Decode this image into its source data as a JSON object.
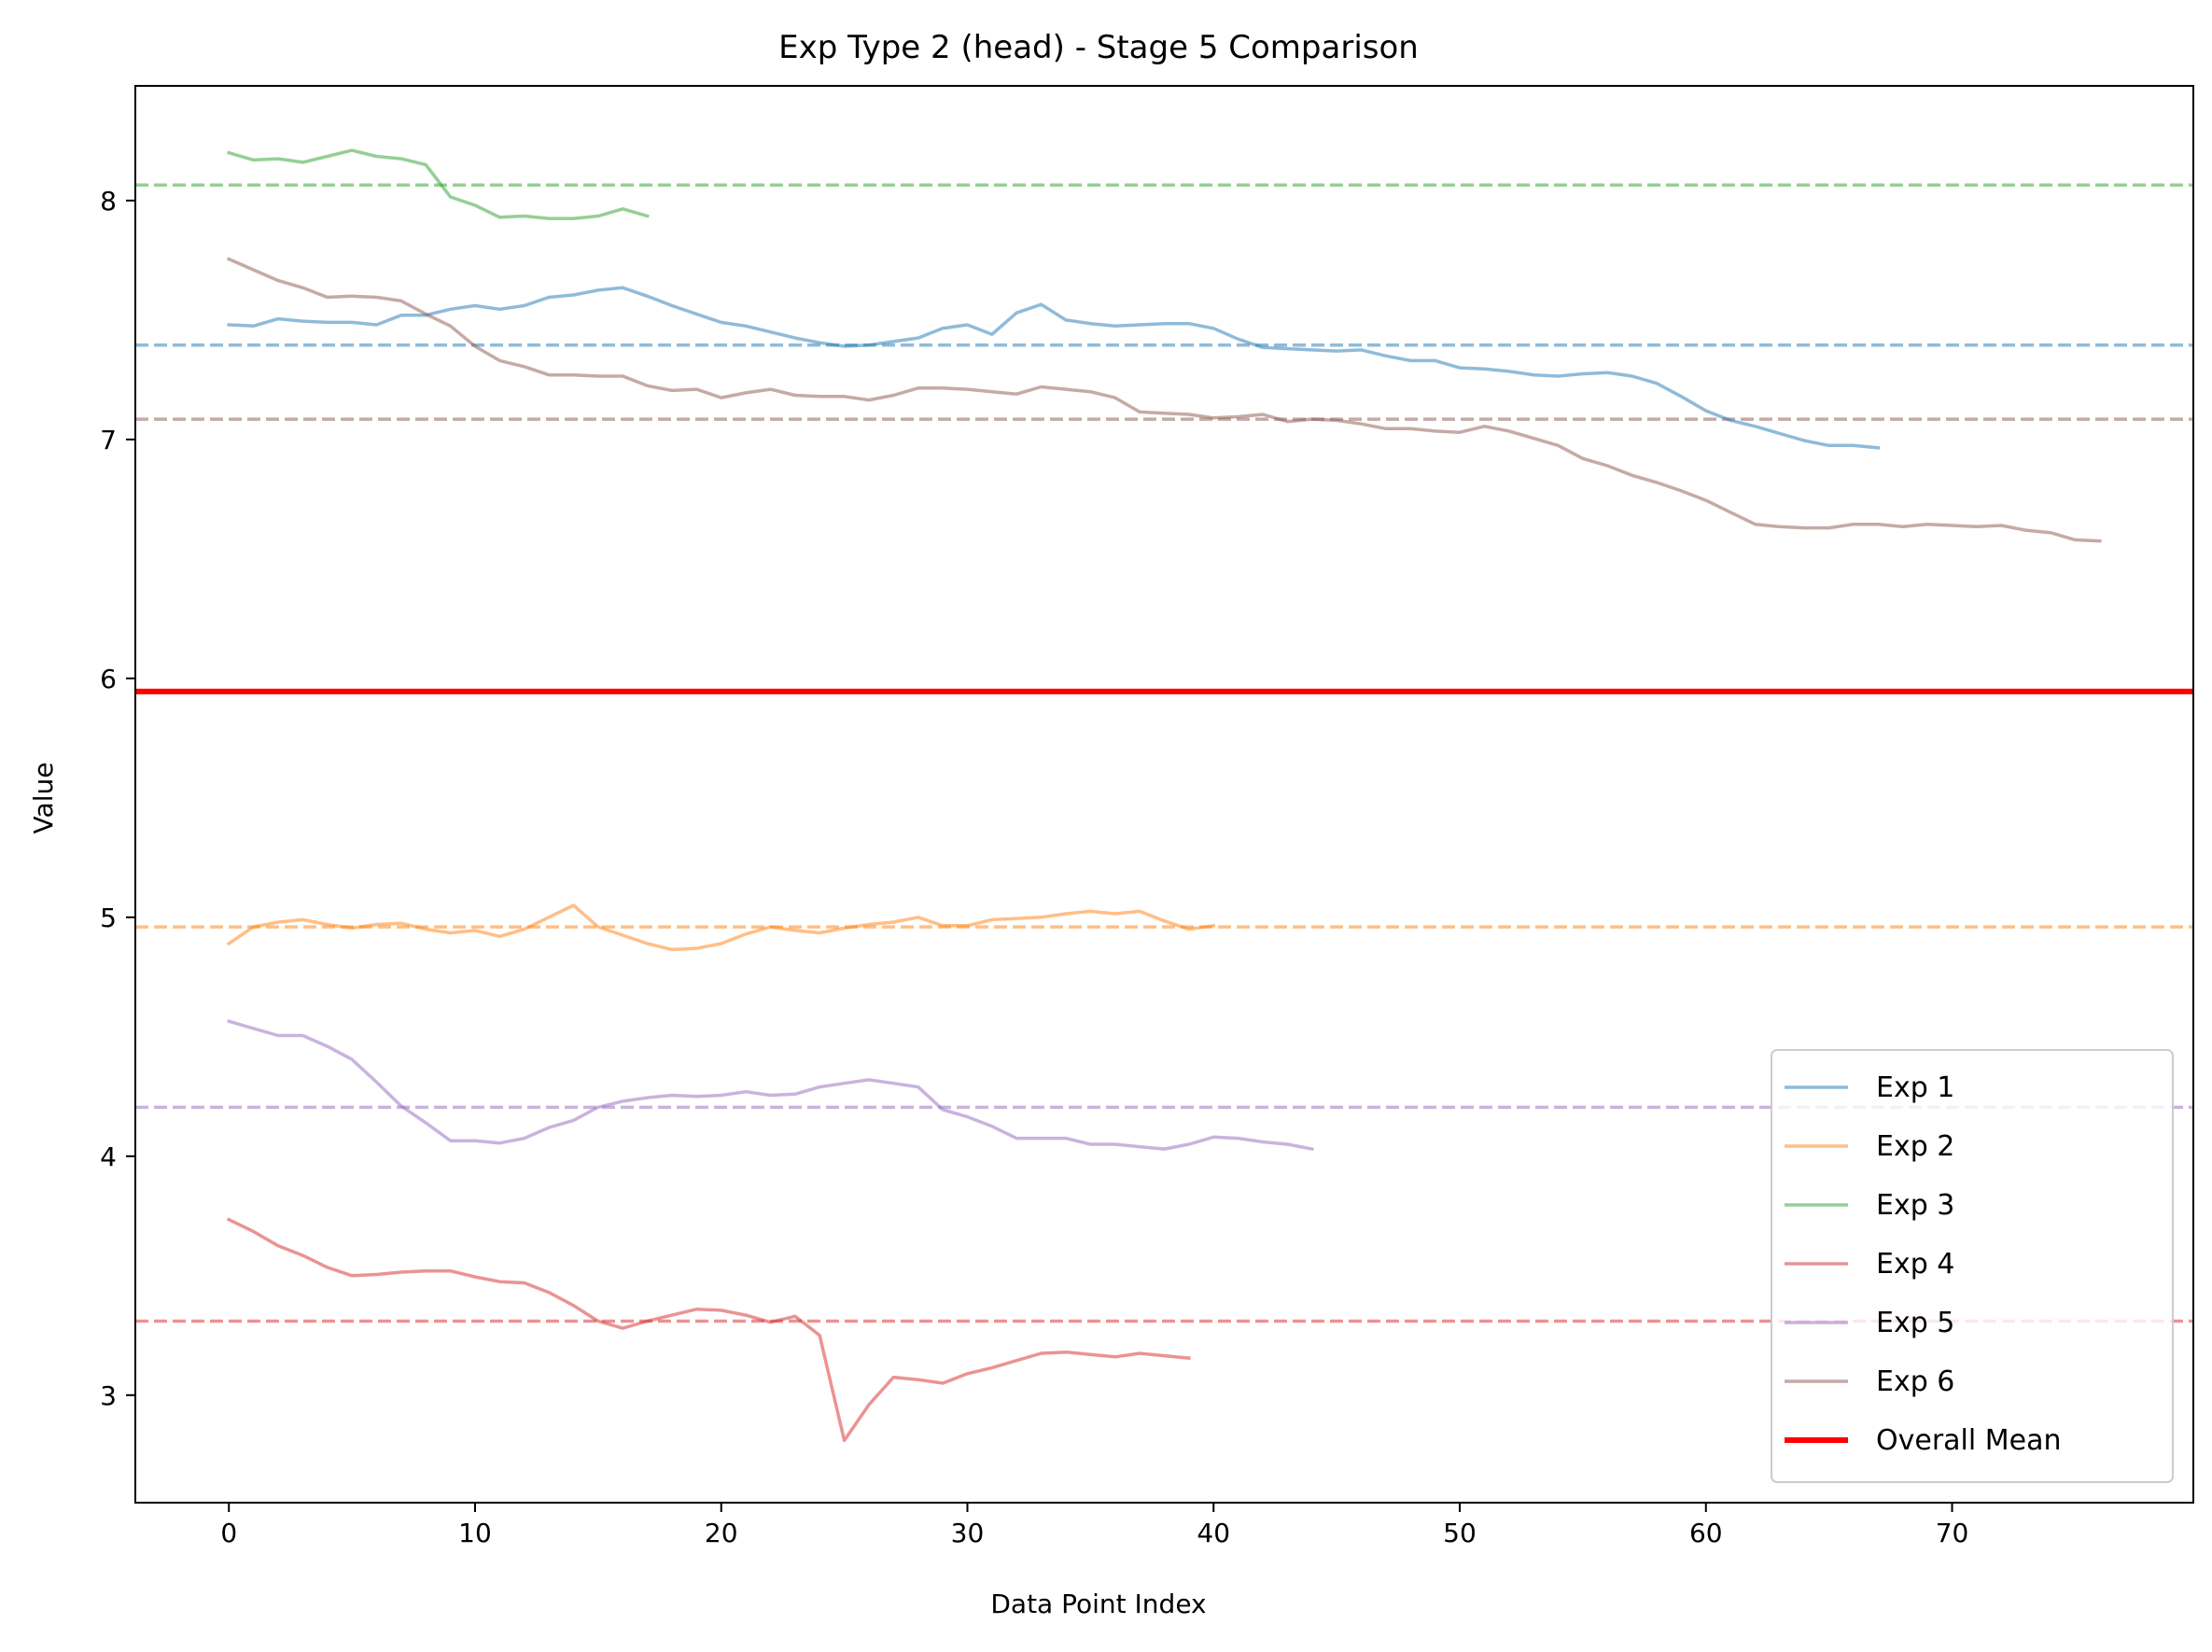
{
  "chart_data": {
    "type": "line",
    "title": "Exp Type 2 (head) - Stage 5 Comparison",
    "xlabel": "Data Point Index",
    "ylabel": "Value",
    "xlim": [
      -3.8,
      79.8
    ],
    "ylim": [
      2.55,
      8.48
    ],
    "xticks": [
      0,
      10,
      20,
      30,
      40,
      50,
      60,
      70
    ],
    "yticks": [
      3,
      4,
      5,
      6,
      7,
      8
    ],
    "grid": false,
    "legend_position": "lower-right",
    "series": [
      {
        "name": "Exp 1",
        "color": "#1f77b4",
        "mean": 7.395,
        "values": [
          7.48,
          7.475,
          7.505,
          7.495,
          7.49,
          7.49,
          7.48,
          7.52,
          7.52,
          7.545,
          7.56,
          7.545,
          7.56,
          7.595,
          7.605,
          7.625,
          7.635,
          7.6,
          7.56,
          7.525,
          7.49,
          7.475,
          7.45,
          7.425,
          7.405,
          7.39,
          7.395,
          7.41,
          7.425,
          7.465,
          7.48,
          7.44,
          7.53,
          7.565,
          7.5,
          7.485,
          7.475,
          7.48,
          7.485,
          7.485,
          7.465,
          7.42,
          7.385,
          7.38,
          7.375,
          7.37,
          7.375,
          7.35,
          7.33,
          7.33,
          7.3,
          7.295,
          7.285,
          7.27,
          7.265,
          7.275,
          7.28,
          7.265,
          7.235,
          7.18,
          7.12,
          7.08,
          7.055,
          7.025,
          6.995,
          6.975,
          6.975,
          6.965
        ]
      },
      {
        "name": "Exp 2",
        "color": "#ff7f0e",
        "mean": 4.96,
        "values": [
          4.89,
          4.96,
          4.98,
          4.99,
          4.97,
          4.955,
          4.97,
          4.975,
          4.95,
          4.935,
          4.945,
          4.92,
          4.95,
          5.0,
          5.05,
          4.96,
          4.925,
          4.89,
          4.865,
          4.87,
          4.89,
          4.93,
          4.96,
          4.945,
          4.935,
          4.955,
          4.97,
          4.98,
          5.0,
          4.965,
          4.965,
          4.99,
          4.995,
          5.0,
          5.015,
          5.025,
          5.015,
          5.025,
          4.985,
          4.95,
          4.965
        ]
      },
      {
        "name": "Exp 3",
        "color": "#2ca02c",
        "mean": 8.065,
        "values": [
          8.2,
          8.17,
          8.175,
          8.16,
          8.185,
          8.21,
          8.185,
          8.175,
          8.15,
          8.015,
          7.98,
          7.93,
          7.935,
          7.925,
          7.925,
          7.935,
          7.965,
          7.935
        ]
      },
      {
        "name": "Exp 4",
        "color": "#d62728",
        "mean": 3.31,
        "values": [
          3.735,
          3.685,
          3.625,
          3.585,
          3.535,
          3.5,
          3.505,
          3.515,
          3.52,
          3.52,
          3.495,
          3.475,
          3.47,
          3.43,
          3.375,
          3.31,
          3.28,
          3.31,
          3.335,
          3.36,
          3.355,
          3.335,
          3.305,
          3.33,
          3.25,
          2.81,
          2.96,
          3.075,
          3.065,
          3.05,
          3.09,
          3.115,
          3.145,
          3.175,
          3.18,
          3.17,
          3.16,
          3.175,
          3.165,
          3.155
        ]
      },
      {
        "name": "Exp 5",
        "color": "#9467bd",
        "mean": 4.205,
        "values": [
          4.565,
          4.535,
          4.505,
          4.505,
          4.46,
          4.405,
          4.31,
          4.21,
          4.14,
          4.065,
          4.065,
          4.055,
          4.075,
          4.12,
          4.15,
          4.205,
          4.23,
          4.245,
          4.255,
          4.25,
          4.255,
          4.27,
          4.255,
          4.26,
          4.29,
          4.305,
          4.32,
          4.305,
          4.29,
          4.195,
          4.165,
          4.125,
          4.075,
          4.075,
          4.075,
          4.05,
          4.05,
          4.04,
          4.03,
          4.05,
          4.08,
          4.075,
          4.06,
          4.05,
          4.03
        ]
      },
      {
        "name": "Exp 6",
        "color": "#8c564b",
        "mean": 7.085,
        "values": [
          7.755,
          7.71,
          7.665,
          7.635,
          7.595,
          7.6,
          7.595,
          7.58,
          7.525,
          7.475,
          7.39,
          7.33,
          7.305,
          7.27,
          7.27,
          7.265,
          7.265,
          7.225,
          7.205,
          7.21,
          7.175,
          7.195,
          7.21,
          7.185,
          7.18,
          7.18,
          7.165,
          7.185,
          7.215,
          7.215,
          7.21,
          7.2,
          7.19,
          7.22,
          7.21,
          7.2,
          7.175,
          7.115,
          7.11,
          7.105,
          7.09,
          7.095,
          7.105,
          7.075,
          7.085,
          7.08,
          7.065,
          7.045,
          7.045,
          7.035,
          7.03,
          7.055,
          7.035,
          7.005,
          6.975,
          6.92,
          6.89,
          6.85,
          6.82,
          6.785,
          6.745,
          6.695,
          6.645,
          6.635,
          6.63,
          6.63,
          6.645,
          6.645,
          6.635,
          6.645,
          6.64,
          6.635,
          6.64,
          6.62,
          6.61,
          6.58,
          6.575
        ]
      }
    ],
    "overall_mean": {
      "name": "Overall Mean",
      "color": "#ff0000",
      "value": 5.945
    }
  }
}
